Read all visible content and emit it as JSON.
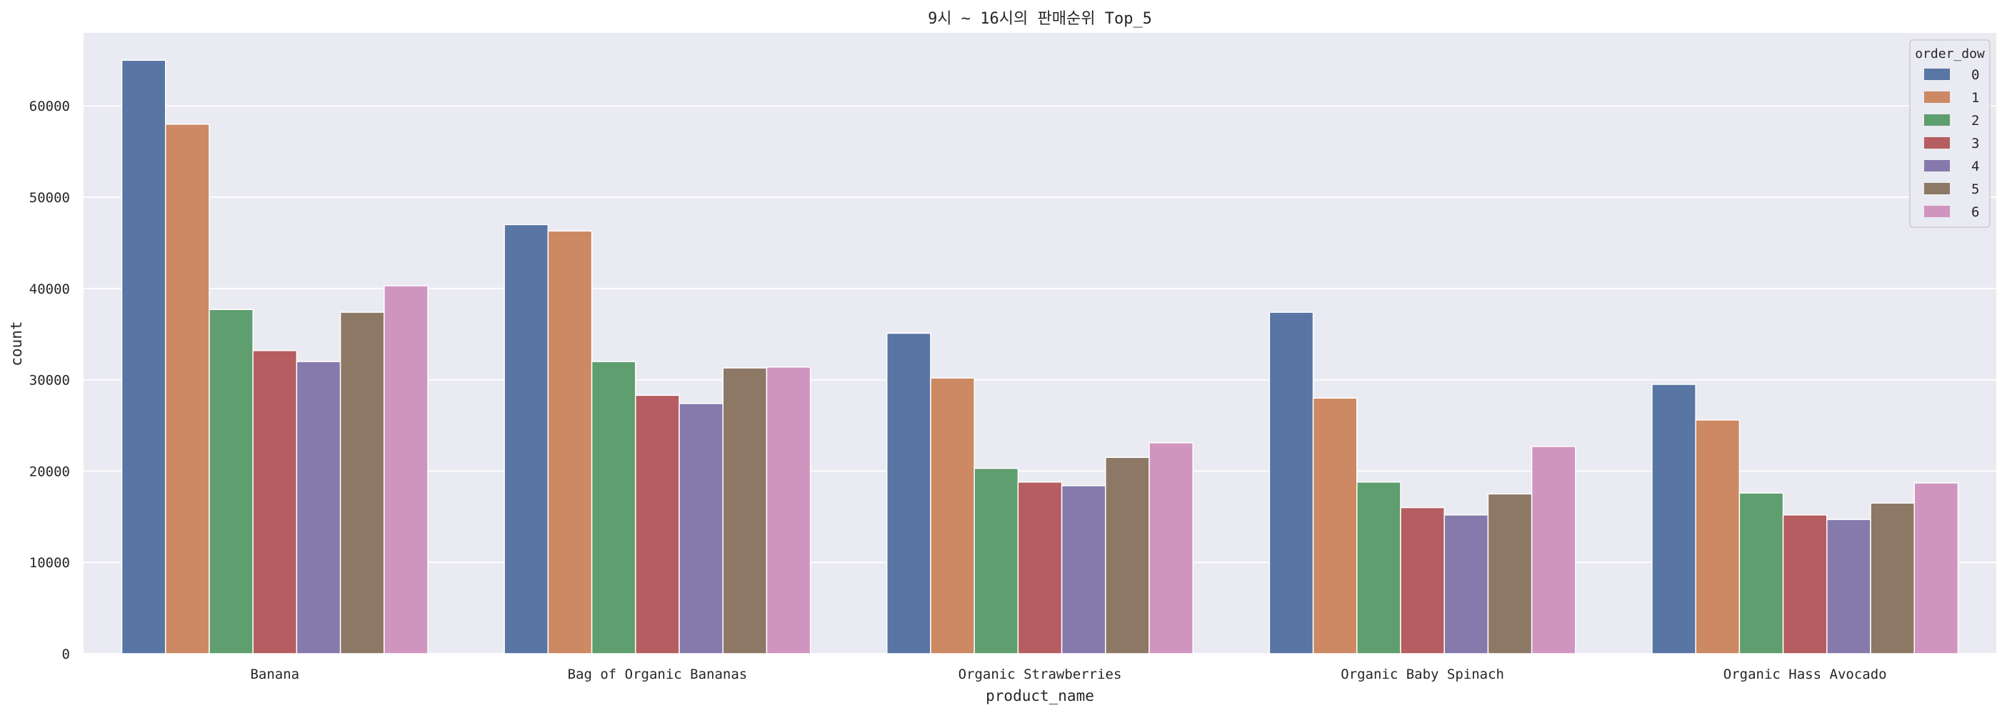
{
  "chart_data": {
    "type": "bar",
    "title": "9시 ~ 16시의 판매순위 Top_5",
    "xlabel": "product_name",
    "ylabel": "count",
    "ylim": [
      0,
      68000
    ],
    "yticks": [
      0,
      10000,
      20000,
      30000,
      40000,
      50000,
      60000
    ],
    "grid": true,
    "legend_title": "order_dow",
    "legend_position": "top-right",
    "categories": [
      "Banana",
      "Bag of Organic Bananas",
      "Organic Strawberries",
      "Organic Baby Spinach",
      "Organic Hass Avocado"
    ],
    "series": [
      {
        "name": "0",
        "color": "#5975a4",
        "values": [
          65000,
          47000,
          35100,
          37400,
          29500
        ]
      },
      {
        "name": "1",
        "color": "#cc8963",
        "values": [
          58000,
          46300,
          30200,
          28000,
          25600
        ]
      },
      {
        "name": "2",
        "color": "#5f9e6e",
        "values": [
          37700,
          32000,
          20300,
          18800,
          17600
        ]
      },
      {
        "name": "3",
        "color": "#b55d60",
        "values": [
          33200,
          28300,
          18800,
          16000,
          15200
        ]
      },
      {
        "name": "4",
        "color": "#857aab",
        "values": [
          32000,
          27400,
          18400,
          15200,
          14700
        ]
      },
      {
        "name": "5",
        "color": "#8d7866",
        "values": [
          37400,
          31300,
          21500,
          17500,
          16500
        ]
      },
      {
        "name": "6",
        "color": "#d095bf",
        "values": [
          40300,
          31400,
          23100,
          22700,
          18700
        ]
      }
    ]
  }
}
